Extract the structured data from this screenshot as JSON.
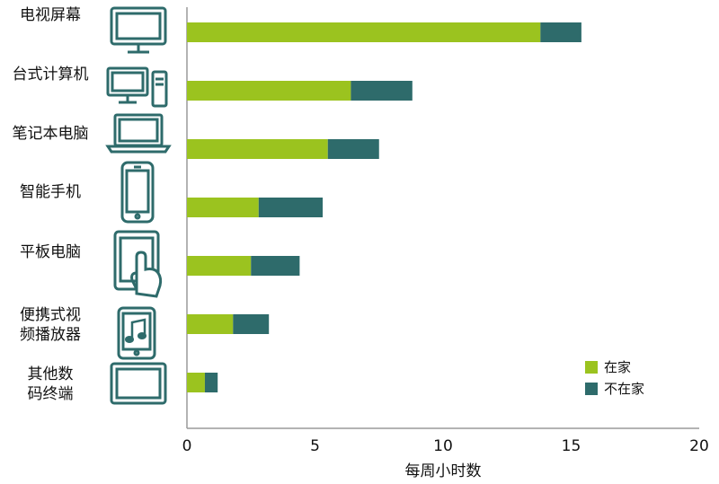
{
  "chart_data": {
    "type": "bar",
    "orientation": "horizontal",
    "stacked": true,
    "categories": [
      [
        "电视屏幕"
      ],
      [
        "台式计算机"
      ],
      [
        "笔记本电脑"
      ],
      [
        "智能手机"
      ],
      [
        "平板电脑"
      ],
      [
        "便携式视",
        "频播放器"
      ],
      [
        "其他数",
        "码终端"
      ]
    ],
    "category_icons": [
      "tv-icon",
      "desktop-computer-icon",
      "laptop-icon",
      "smartphone-icon",
      "tablet-touch-icon",
      "music-player-icon",
      "other-device-icon"
    ],
    "series": [
      {
        "name": "在家",
        "color": "#9bc31f",
        "values": [
          13.8,
          6.4,
          5.5,
          2.8,
          2.5,
          1.8,
          0.7
        ]
      },
      {
        "name": "不在家",
        "color": "#2e6b6b",
        "values": [
          1.6,
          2.4,
          2.0,
          2.5,
          1.9,
          1.4,
          0.5
        ]
      }
    ],
    "xlabel": "每周小时数",
    "xlim": [
      0,
      20
    ],
    "xticks": [
      "0",
      "5",
      "10",
      "15",
      "20"
    ],
    "grid": false,
    "legend_position": "bottom-right"
  }
}
